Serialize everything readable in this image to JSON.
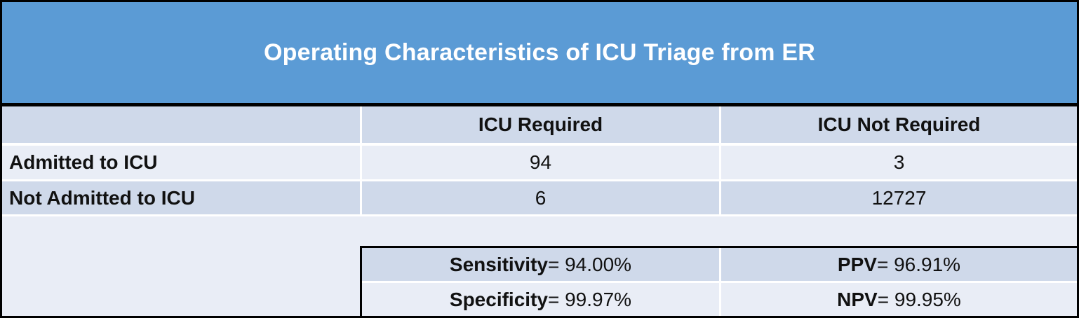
{
  "title": "Operating Characteristics of ICU Triage from ER",
  "colors": {
    "banner_blue": "#5B9BD5",
    "band_dark": "#CFD9EA",
    "band_light": "#E9EDF6",
    "divider_white": "#FFFFFF",
    "border_black": "#000000",
    "title_text": "#FFFFFF",
    "body_text": "#111111"
  },
  "matrix": {
    "column_headers": [
      "ICU Required",
      "ICU Not Required"
    ],
    "rows": [
      {
        "label": "Admitted to ICU",
        "values": [
          "94",
          "3"
        ]
      },
      {
        "label": "Not Admitted to ICU",
        "values": [
          "6",
          "12727"
        ]
      }
    ]
  },
  "stats": {
    "cells": [
      {
        "label": "Sensitivity",
        "value": "= 94.00%"
      },
      {
        "label": "PPV",
        "value": "= 96.91%"
      },
      {
        "label": "Specificity",
        "value": "= 99.97%"
      },
      {
        "label": "NPV",
        "value": "= 99.95%"
      }
    ]
  },
  "chart_data": {
    "type": "table",
    "title": "Operating Characteristics of ICU Triage from ER",
    "columns": [
      "",
      "ICU Required",
      "ICU Not Required"
    ],
    "rows": [
      [
        "Admitted to ICU",
        94,
        3
      ],
      [
        "Not Admitted to ICU",
        6,
        12727
      ]
    ],
    "statistics": {
      "Sensitivity": "94.00%",
      "Specificity": "99.97%",
      "PPV": "96.91%",
      "NPV": "99.95%"
    },
    "layout": {
      "banded_rows": true,
      "header_banner": "blue",
      "grid": "white cell dividers, black outer border"
    }
  }
}
